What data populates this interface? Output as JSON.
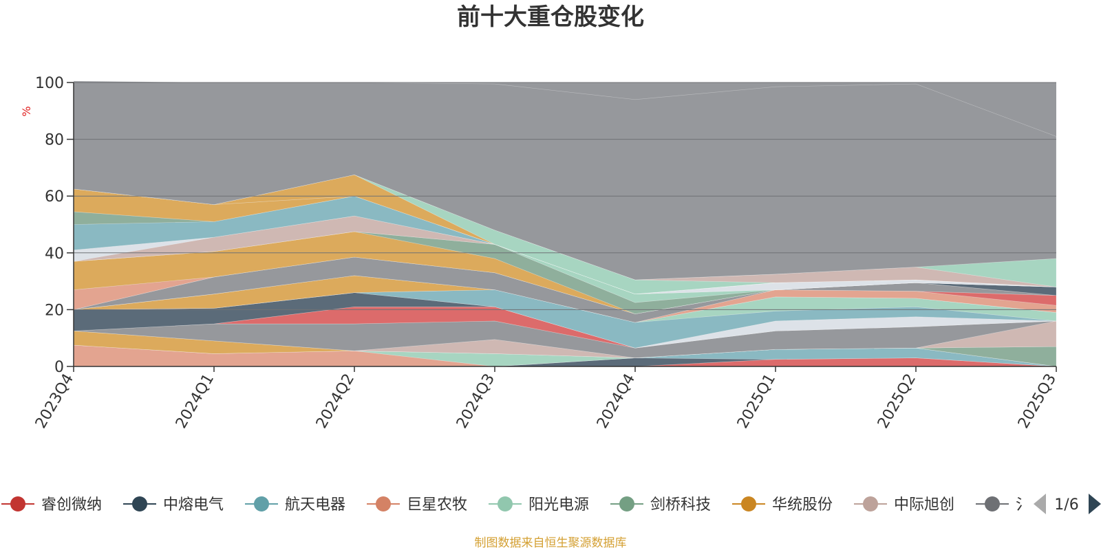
{
  "colors": {
    "background": "#ffffff",
    "plot_background": "#96989c",
    "axis": "#333333",
    "source_text": "#d4a033"
  },
  "chart_data": {
    "type": "area",
    "stacked": true,
    "title": "前十大重仓股变化",
    "ylabel": "%",
    "ylim": [
      0,
      100
    ],
    "yticks": [
      0,
      20,
      40,
      60,
      80,
      100
    ],
    "grid": true,
    "categories": [
      "2023Q4",
      "2024Q1",
      "2024Q2",
      "2024Q3",
      "2024Q4",
      "2025Q1",
      "2025Q2",
      "2025Q3"
    ],
    "series": [
      {
        "name": "睿创微纳",
        "color": "#dc6b6b",
        "values": [
          0,
          0,
          0,
          0,
          0,
          2.5,
          3,
          0
        ]
      },
      {
        "name": "中熔电气",
        "color": "#5b6b79",
        "values": [
          0,
          0,
          0,
          0,
          3,
          0,
          0,
          0
        ]
      },
      {
        "name": "航天电器",
        "color": "#8ab9c2",
        "values": [
          0,
          0,
          0,
          0,
          0,
          3.5,
          3.5,
          0
        ]
      },
      {
        "name": "巨星农牧",
        "color": "#e3a490",
        "values": [
          7.5,
          4.5,
          5.5,
          0,
          0,
          0,
          0,
          0
        ]
      },
      {
        "name": "阳光电源",
        "color": "#a7d5c1",
        "values": [
          0,
          0,
          0,
          4.5,
          0,
          0,
          0,
          0
        ]
      },
      {
        "name": "剑桥科技",
        "color": "#8faf9c",
        "values": [
          0,
          0,
          0,
          0,
          0,
          0,
          0,
          7
        ]
      },
      {
        "name": "华统股份",
        "color": "#dcaa5c",
        "values": [
          5,
          4.5,
          0,
          0,
          0,
          0,
          0,
          0
        ]
      },
      {
        "name": "中际旭创",
        "color": "#cfb8b3",
        "values": [
          0,
          0,
          0,
          5,
          0,
          0,
          0,
          9
        ]
      },
      {
        "name": "",
        "color": "#96989c",
        "values": [
          0,
          6,
          9.5,
          6.5,
          3.5,
          6.5,
          7.5,
          0
        ]
      },
      {
        "name": "",
        "color": "#dc6b6b",
        "values": [
          0,
          0,
          6,
          5,
          0,
          0,
          0,
          0
        ]
      },
      {
        "name": "",
        "color": "#5b6b79",
        "values": [
          7.5,
          5.5,
          5,
          0,
          0,
          0,
          0,
          0
        ]
      },
      {
        "name": "",
        "color": "#dde2e8",
        "values": [
          0,
          0,
          0,
          0,
          0,
          3.5,
          3.5,
          0
        ]
      },
      {
        "name": "",
        "color": "#8ab9c2",
        "values": [
          0,
          0,
          0,
          6,
          9,
          3.5,
          3.5,
          0
        ]
      },
      {
        "name": "",
        "color": "#a7d5c1",
        "values": [
          0,
          0,
          0,
          0,
          0,
          5,
          3,
          3
        ]
      },
      {
        "name": "",
        "color": "#dcaa5c",
        "values": [
          0,
          5,
          6,
          0,
          0,
          0,
          0,
          0
        ]
      },
      {
        "name": "",
        "color": "#e3a490",
        "values": [
          0,
          0,
          0,
          0,
          0,
          2.5,
          2.5,
          2.5
        ]
      },
      {
        "name": "",
        "color": "#dc6b6b",
        "values": [
          0,
          0,
          0,
          0,
          0,
          0,
          0,
          3.5
        ]
      },
      {
        "name": "",
        "color": "#96989c",
        "values": [
          0,
          6,
          6.5,
          6,
          3,
          0,
          3,
          0
        ]
      },
      {
        "name": "",
        "color": "#5b6b79",
        "values": [
          0,
          0,
          0,
          0,
          0,
          0,
          0,
          3
        ]
      },
      {
        "name": "",
        "color": "#e3a490",
        "values": [
          7,
          0,
          0,
          0,
          0,
          0,
          0,
          0
        ]
      },
      {
        "name": "",
        "color": "#dcaa5c",
        "values": [
          10,
          9,
          9,
          5,
          0,
          0,
          0,
          0
        ]
      },
      {
        "name": "",
        "color": "#8faf9c",
        "values": [
          0,
          0,
          0,
          5,
          4,
          0,
          0,
          0
        ]
      },
      {
        "name": "",
        "color": "#a7d5c1",
        "values": [
          0,
          0,
          0,
          0,
          3,
          0,
          0,
          0
        ]
      },
      {
        "name": "",
        "color": "#cfb8b3",
        "values": [
          0,
          5,
          5.5,
          0,
          0,
          0,
          0,
          0
        ]
      },
      {
        "name": "",
        "color": "#dde2e8",
        "values": [
          4,
          0,
          0,
          0,
          0,
          2.5,
          1,
          0
        ]
      },
      {
        "name": "",
        "color": "#8ab9c2",
        "values": [
          9,
          5.5,
          7,
          0,
          0,
          0,
          0,
          0
        ]
      },
      {
        "name": "",
        "color": "#8faf9c",
        "values": [
          4.5,
          0,
          0,
          0,
          0,
          0,
          0,
          0
        ]
      },
      {
        "name": "",
        "color": "#dcaa5c",
        "values": [
          8,
          6,
          0,
          0,
          0,
          0,
          0,
          0
        ]
      },
      {
        "name": "",
        "color": "#dcaa5c",
        "values": [
          0,
          0,
          7.5,
          0,
          0,
          0,
          0,
          0
        ]
      },
      {
        "name": "",
        "color": "#a7d5c1",
        "values": [
          0,
          0,
          0,
          5,
          5,
          0,
          0,
          0
        ]
      },
      {
        "name": "",
        "color": "#cfb8b3",
        "values": [
          0,
          0,
          0,
          0,
          0,
          3,
          4.5,
          0
        ]
      },
      {
        "name": "",
        "color": "#a7d5c1",
        "values": [
          0,
          0,
          0,
          0,
          0,
          0,
          0,
          10
        ]
      },
      {
        "name": "",
        "color": "#96989c",
        "values": [
          38,
          43,
          32.5,
          51.5,
          63.5,
          66,
          64.5,
          43
        ]
      }
    ]
  },
  "legend": {
    "items": [
      {
        "name": "睿创微纳",
        "color": "#c23531"
      },
      {
        "name": "中熔电气",
        "color": "#2f4554"
      },
      {
        "name": "航天电器",
        "color": "#61a0a8"
      },
      {
        "name": "巨星农牧",
        "color": "#d48265"
      },
      {
        "name": "阳光电源",
        "color": "#91c7ae"
      },
      {
        "name": "剑桥科技",
        "color": "#749f83"
      },
      {
        "name": "华统股份",
        "color": "#ca8622"
      },
      {
        "name": "中际旭创",
        "color": "#bda29a"
      },
      {
        "name": "氵",
        "color": "#6e7074"
      }
    ],
    "page_label": "1/6"
  },
  "source_note": "制图数据来自恒生聚源数据库"
}
